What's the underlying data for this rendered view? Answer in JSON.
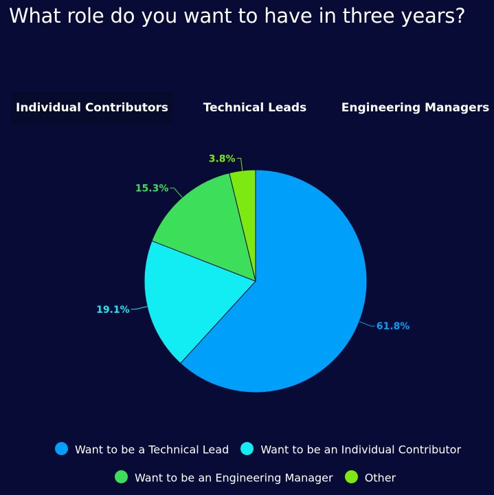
{
  "title": "What role do you want to have in three years?",
  "tabs": [
    {
      "label": "Individual Contributors",
      "active": true
    },
    {
      "label": "Technical Leads",
      "active": false
    },
    {
      "label": "Engineering Managers",
      "active": false
    }
  ],
  "chart_data": {
    "type": "pie",
    "title": "What role do you want to have in three years?",
    "categories": [
      "Want to be a Technical Lead",
      "Want to be an Individual Contributor",
      "Want to be an Engineering Manager",
      "Other"
    ],
    "values": [
      61.8,
      19.1,
      15.3,
      3.8
    ],
    "labels": [
      "61.8%",
      "19.1%",
      "15.3%",
      "3.8%"
    ],
    "colors": [
      "#009ff9",
      "#11edf2",
      "#3cde5a",
      "#7de910"
    ],
    "start": "12 o'clock",
    "direction": "clockwise",
    "legend_placement": "bottom"
  },
  "legend": [
    {
      "label": "Want to be a Technical Lead",
      "color": "#009ff9"
    },
    {
      "label": "Want to be an Individual Contributor",
      "color": "#11edf2"
    },
    {
      "label": "Want to be an Engineering Manager",
      "color": "#3cde5a"
    },
    {
      "label": "Other",
      "color": "#7de910"
    }
  ],
  "colors": {
    "background": "#070b35",
    "tab_active_background": "#060a2b",
    "text": "#ffffff",
    "slice_border": "#070b35"
  }
}
